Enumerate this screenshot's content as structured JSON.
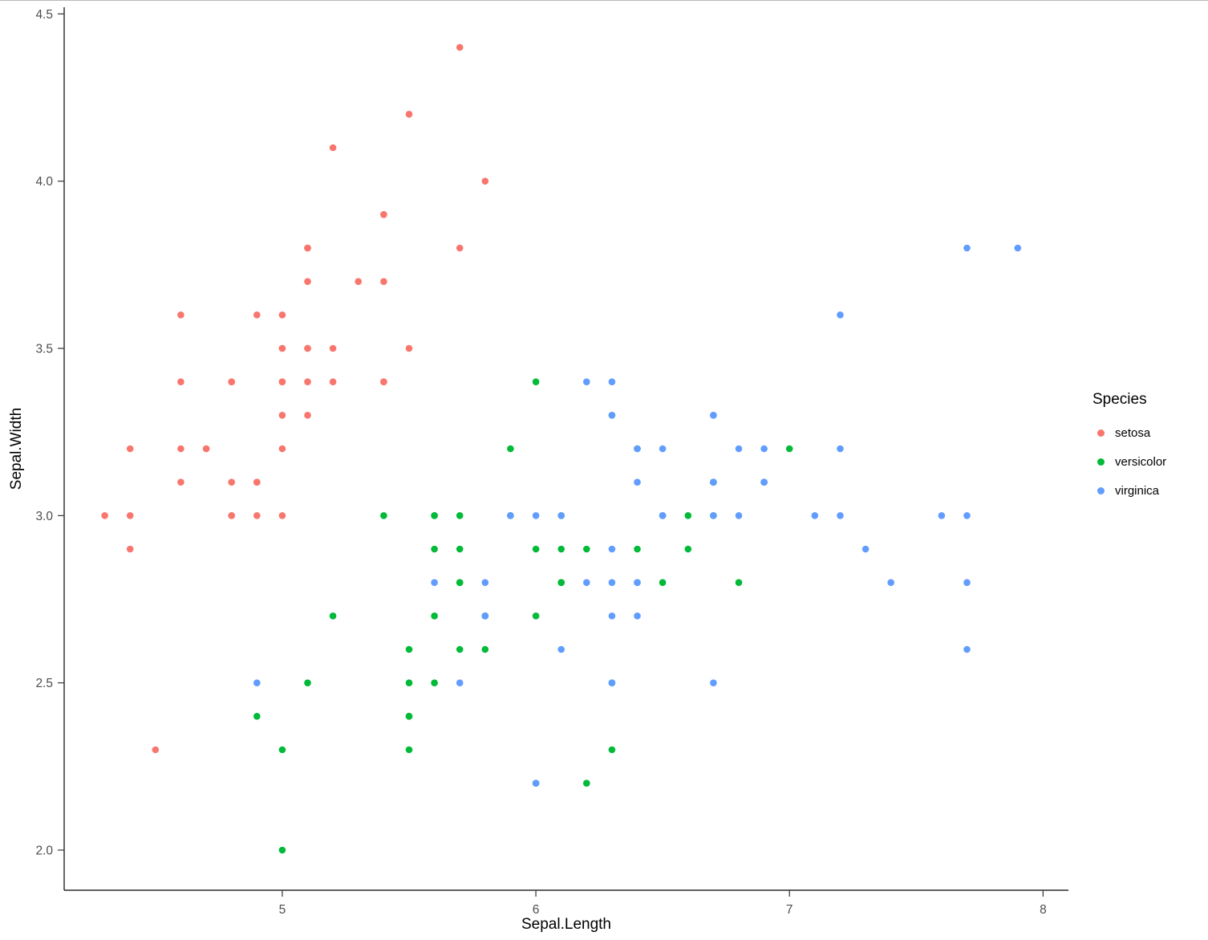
{
  "chart_data": {
    "type": "scatter",
    "title": "",
    "xlabel": "Sepal.Length",
    "ylabel": "Sepal.Width",
    "xlim": [
      4.14,
      8.1
    ],
    "ylim": [
      1.88,
      4.52
    ],
    "x_ticks": [
      5,
      6,
      7,
      8
    ],
    "x_tick_labels": [
      "5",
      "6",
      "7",
      "8"
    ],
    "y_ticks": [
      2.0,
      2.5,
      3.0,
      3.5,
      4.0,
      4.5
    ],
    "y_tick_labels": [
      "2.0",
      "2.5",
      "3.0",
      "3.5",
      "4.0",
      "4.5"
    ],
    "grid": false,
    "legend_title": "Species",
    "legend_position": "right",
    "colors": {
      "setosa": "#F8766D",
      "versicolor": "#00BA38",
      "virginica": "#619CFF"
    },
    "axis_text_color": "#4d4d4d",
    "axis_line_color": "#000000",
    "series": [
      {
        "name": "setosa",
        "color": "#F8766D",
        "points": [
          [
            5.1,
            3.5
          ],
          [
            4.9,
            3.0
          ],
          [
            4.7,
            3.2
          ],
          [
            4.6,
            3.1
          ],
          [
            5.0,
            3.6
          ],
          [
            5.4,
            3.9
          ],
          [
            4.6,
            3.4
          ],
          [
            5.0,
            3.4
          ],
          [
            4.4,
            2.9
          ],
          [
            4.9,
            3.1
          ],
          [
            5.4,
            3.7
          ],
          [
            4.8,
            3.4
          ],
          [
            4.8,
            3.0
          ],
          [
            4.3,
            3.0
          ],
          [
            5.8,
            4.0
          ],
          [
            5.7,
            4.4
          ],
          [
            5.4,
            3.9
          ],
          [
            5.1,
            3.5
          ],
          [
            5.7,
            3.8
          ],
          [
            5.1,
            3.8
          ],
          [
            5.4,
            3.4
          ],
          [
            5.1,
            3.7
          ],
          [
            4.6,
            3.6
          ],
          [
            5.1,
            3.3
          ],
          [
            4.8,
            3.4
          ],
          [
            5.0,
            3.0
          ],
          [
            5.0,
            3.4
          ],
          [
            5.2,
            3.5
          ],
          [
            5.2,
            3.4
          ],
          [
            4.7,
            3.2
          ],
          [
            4.8,
            3.1
          ],
          [
            5.4,
            3.4
          ],
          [
            5.2,
            4.1
          ],
          [
            5.5,
            4.2
          ],
          [
            4.9,
            3.1
          ],
          [
            5.0,
            3.2
          ],
          [
            5.5,
            3.5
          ],
          [
            4.9,
            3.6
          ],
          [
            4.4,
            3.0
          ],
          [
            5.1,
            3.4
          ],
          [
            5.0,
            3.5
          ],
          [
            4.5,
            2.3
          ],
          [
            4.4,
            3.2
          ],
          [
            5.0,
            3.5
          ],
          [
            5.1,
            3.8
          ],
          [
            4.8,
            3.0
          ],
          [
            5.1,
            3.8
          ],
          [
            4.6,
            3.2
          ],
          [
            5.3,
            3.7
          ],
          [
            5.0,
            3.3
          ]
        ]
      },
      {
        "name": "versicolor",
        "color": "#00BA38",
        "points": [
          [
            7.0,
            3.2
          ],
          [
            6.4,
            3.2
          ],
          [
            6.9,
            3.1
          ],
          [
            5.5,
            2.3
          ],
          [
            6.5,
            2.8
          ],
          [
            5.7,
            2.8
          ],
          [
            6.3,
            3.3
          ],
          [
            4.9,
            2.4
          ],
          [
            6.6,
            2.9
          ],
          [
            5.2,
            2.7
          ],
          [
            5.0,
            2.0
          ],
          [
            5.9,
            3.0
          ],
          [
            6.0,
            2.2
          ],
          [
            6.1,
            2.9
          ],
          [
            5.6,
            2.9
          ],
          [
            6.7,
            3.1
          ],
          [
            5.6,
            3.0
          ],
          [
            5.8,
            2.7
          ],
          [
            6.2,
            2.2
          ],
          [
            5.6,
            2.5
          ],
          [
            5.9,
            3.2
          ],
          [
            6.1,
            2.8
          ],
          [
            6.3,
            2.5
          ],
          [
            6.1,
            2.8
          ],
          [
            6.4,
            2.9
          ],
          [
            6.6,
            3.0
          ],
          [
            6.8,
            2.8
          ],
          [
            6.7,
            3.0
          ],
          [
            6.0,
            2.9
          ],
          [
            5.7,
            2.6
          ],
          [
            5.5,
            2.4
          ],
          [
            5.5,
            2.4
          ],
          [
            5.8,
            2.7
          ],
          [
            6.0,
            2.7
          ],
          [
            5.4,
            3.0
          ],
          [
            6.0,
            3.4
          ],
          [
            6.7,
            3.1
          ],
          [
            6.3,
            2.3
          ],
          [
            5.6,
            3.0
          ],
          [
            5.5,
            2.5
          ],
          [
            5.5,
            2.6
          ],
          [
            6.1,
            3.0
          ],
          [
            5.8,
            2.6
          ],
          [
            5.0,
            2.3
          ],
          [
            5.6,
            2.7
          ],
          [
            5.7,
            3.0
          ],
          [
            5.7,
            2.9
          ],
          [
            6.2,
            2.9
          ],
          [
            5.1,
            2.5
          ],
          [
            5.7,
            2.8
          ]
        ]
      },
      {
        "name": "virginica",
        "color": "#619CFF",
        "points": [
          [
            6.3,
            3.3
          ],
          [
            5.8,
            2.7
          ],
          [
            7.1,
            3.0
          ],
          [
            6.3,
            2.9
          ],
          [
            6.5,
            3.0
          ],
          [
            7.6,
            3.0
          ],
          [
            4.9,
            2.5
          ],
          [
            7.3,
            2.9
          ],
          [
            6.7,
            2.5
          ],
          [
            7.2,
            3.6
          ],
          [
            6.5,
            3.2
          ],
          [
            6.4,
            2.7
          ],
          [
            6.8,
            3.0
          ],
          [
            5.7,
            2.5
          ],
          [
            5.8,
            2.8
          ],
          [
            6.4,
            3.2
          ],
          [
            6.5,
            3.0
          ],
          [
            7.7,
            3.8
          ],
          [
            7.7,
            2.6
          ],
          [
            6.0,
            2.2
          ],
          [
            6.9,
            3.2
          ],
          [
            5.6,
            2.8
          ],
          [
            7.7,
            2.8
          ],
          [
            6.3,
            2.7
          ],
          [
            6.7,
            3.3
          ],
          [
            7.2,
            3.2
          ],
          [
            6.2,
            2.8
          ],
          [
            6.1,
            3.0
          ],
          [
            6.4,
            2.8
          ],
          [
            7.2,
            3.0
          ],
          [
            7.4,
            2.8
          ],
          [
            7.9,
            3.8
          ],
          [
            6.4,
            2.8
          ],
          [
            6.3,
            2.8
          ],
          [
            6.1,
            2.6
          ],
          [
            7.7,
            3.0
          ],
          [
            6.3,
            3.4
          ],
          [
            6.4,
            3.1
          ],
          [
            6.0,
            3.0
          ],
          [
            6.9,
            3.1
          ],
          [
            6.7,
            3.1
          ],
          [
            6.9,
            3.1
          ],
          [
            5.8,
            2.7
          ],
          [
            6.8,
            3.2
          ],
          [
            6.7,
            3.3
          ],
          [
            6.7,
            3.0
          ],
          [
            6.3,
            2.5
          ],
          [
            6.5,
            3.0
          ],
          [
            6.2,
            3.4
          ],
          [
            5.9,
            3.0
          ]
        ]
      }
    ]
  }
}
